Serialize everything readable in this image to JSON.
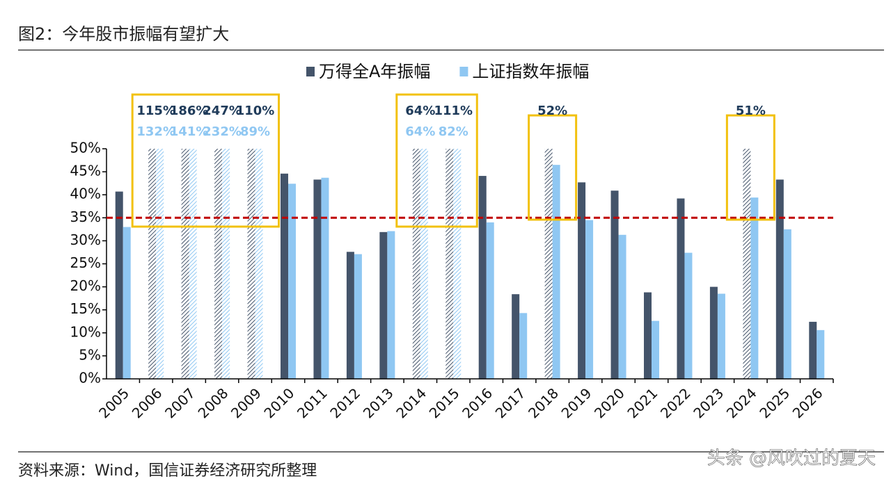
{
  "title": "图2：今年股市振幅有望扩大",
  "source": "资料来源：Wind，国信证券经济研究所整理",
  "watermark": "头条 @风吹过的夏天",
  "chart_data": {
    "type": "bar",
    "categories": [
      "2005",
      "2006",
      "2007",
      "2008",
      "2009",
      "2010",
      "2011",
      "2012",
      "2013",
      "2014",
      "2015",
      "2016",
      "2017",
      "2018",
      "2019",
      "2020",
      "2021",
      "2022",
      "2023",
      "2024",
      "2025",
      "2026"
    ],
    "series": [
      {
        "name": "万得全A年振幅",
        "color": "#44546a",
        "values": [
          40.7,
          115,
          186,
          247,
          110,
          44.6,
          43.3,
          27.6,
          31.9,
          64,
          111,
          44.1,
          18.4,
          52,
          42.7,
          40.9,
          18.8,
          39.2,
          20.0,
          51,
          43.3,
          12.4
        ],
        "value_labels": [
          null,
          "115%",
          "186%",
          "247%",
          "110%",
          null,
          null,
          null,
          null,
          "64%",
          "111%",
          null,
          null,
          "52%",
          null,
          null,
          null,
          null,
          null,
          "51%",
          null,
          null
        ]
      },
      {
        "name": "上证指数年振幅",
        "color": "#8fc7f2",
        "values": [
          33.0,
          132,
          141,
          232,
          89,
          42.4,
          43.7,
          27.1,
          32.1,
          64,
          82,
          34.0,
          14.3,
          46.5,
          34.5,
          31.3,
          12.6,
          27.4,
          18.5,
          39.4,
          32.5,
          10.6
        ],
        "value_labels": [
          null,
          "132%",
          "141%",
          "232%",
          "89%",
          null,
          null,
          null,
          null,
          "64%",
          "82%",
          null,
          null,
          null,
          null,
          null,
          null,
          null,
          null,
          null,
          null,
          null
        ]
      }
    ],
    "ylim": [
      0,
      50
    ],
    "yticks": [
      {
        "value": 0,
        "label": "0%"
      },
      {
        "value": 5,
        "label": "5%"
      },
      {
        "value": 10,
        "label": "10%"
      },
      {
        "value": 15,
        "label": "15%"
      },
      {
        "value": 20,
        "label": "20%"
      },
      {
        "value": 25,
        "label": "25%"
      },
      {
        "value": 30,
        "label": "30%"
      },
      {
        "value": 35,
        "label": "35%"
      },
      {
        "value": 40,
        "label": "40%"
      },
      {
        "value": 45,
        "label": "45%"
      },
      {
        "value": 50,
        "label": "50%"
      }
    ],
    "reference_line": {
      "value": 35,
      "color": "#c00000"
    },
    "highlight_color": "#f2c10f",
    "legend": "top"
  }
}
